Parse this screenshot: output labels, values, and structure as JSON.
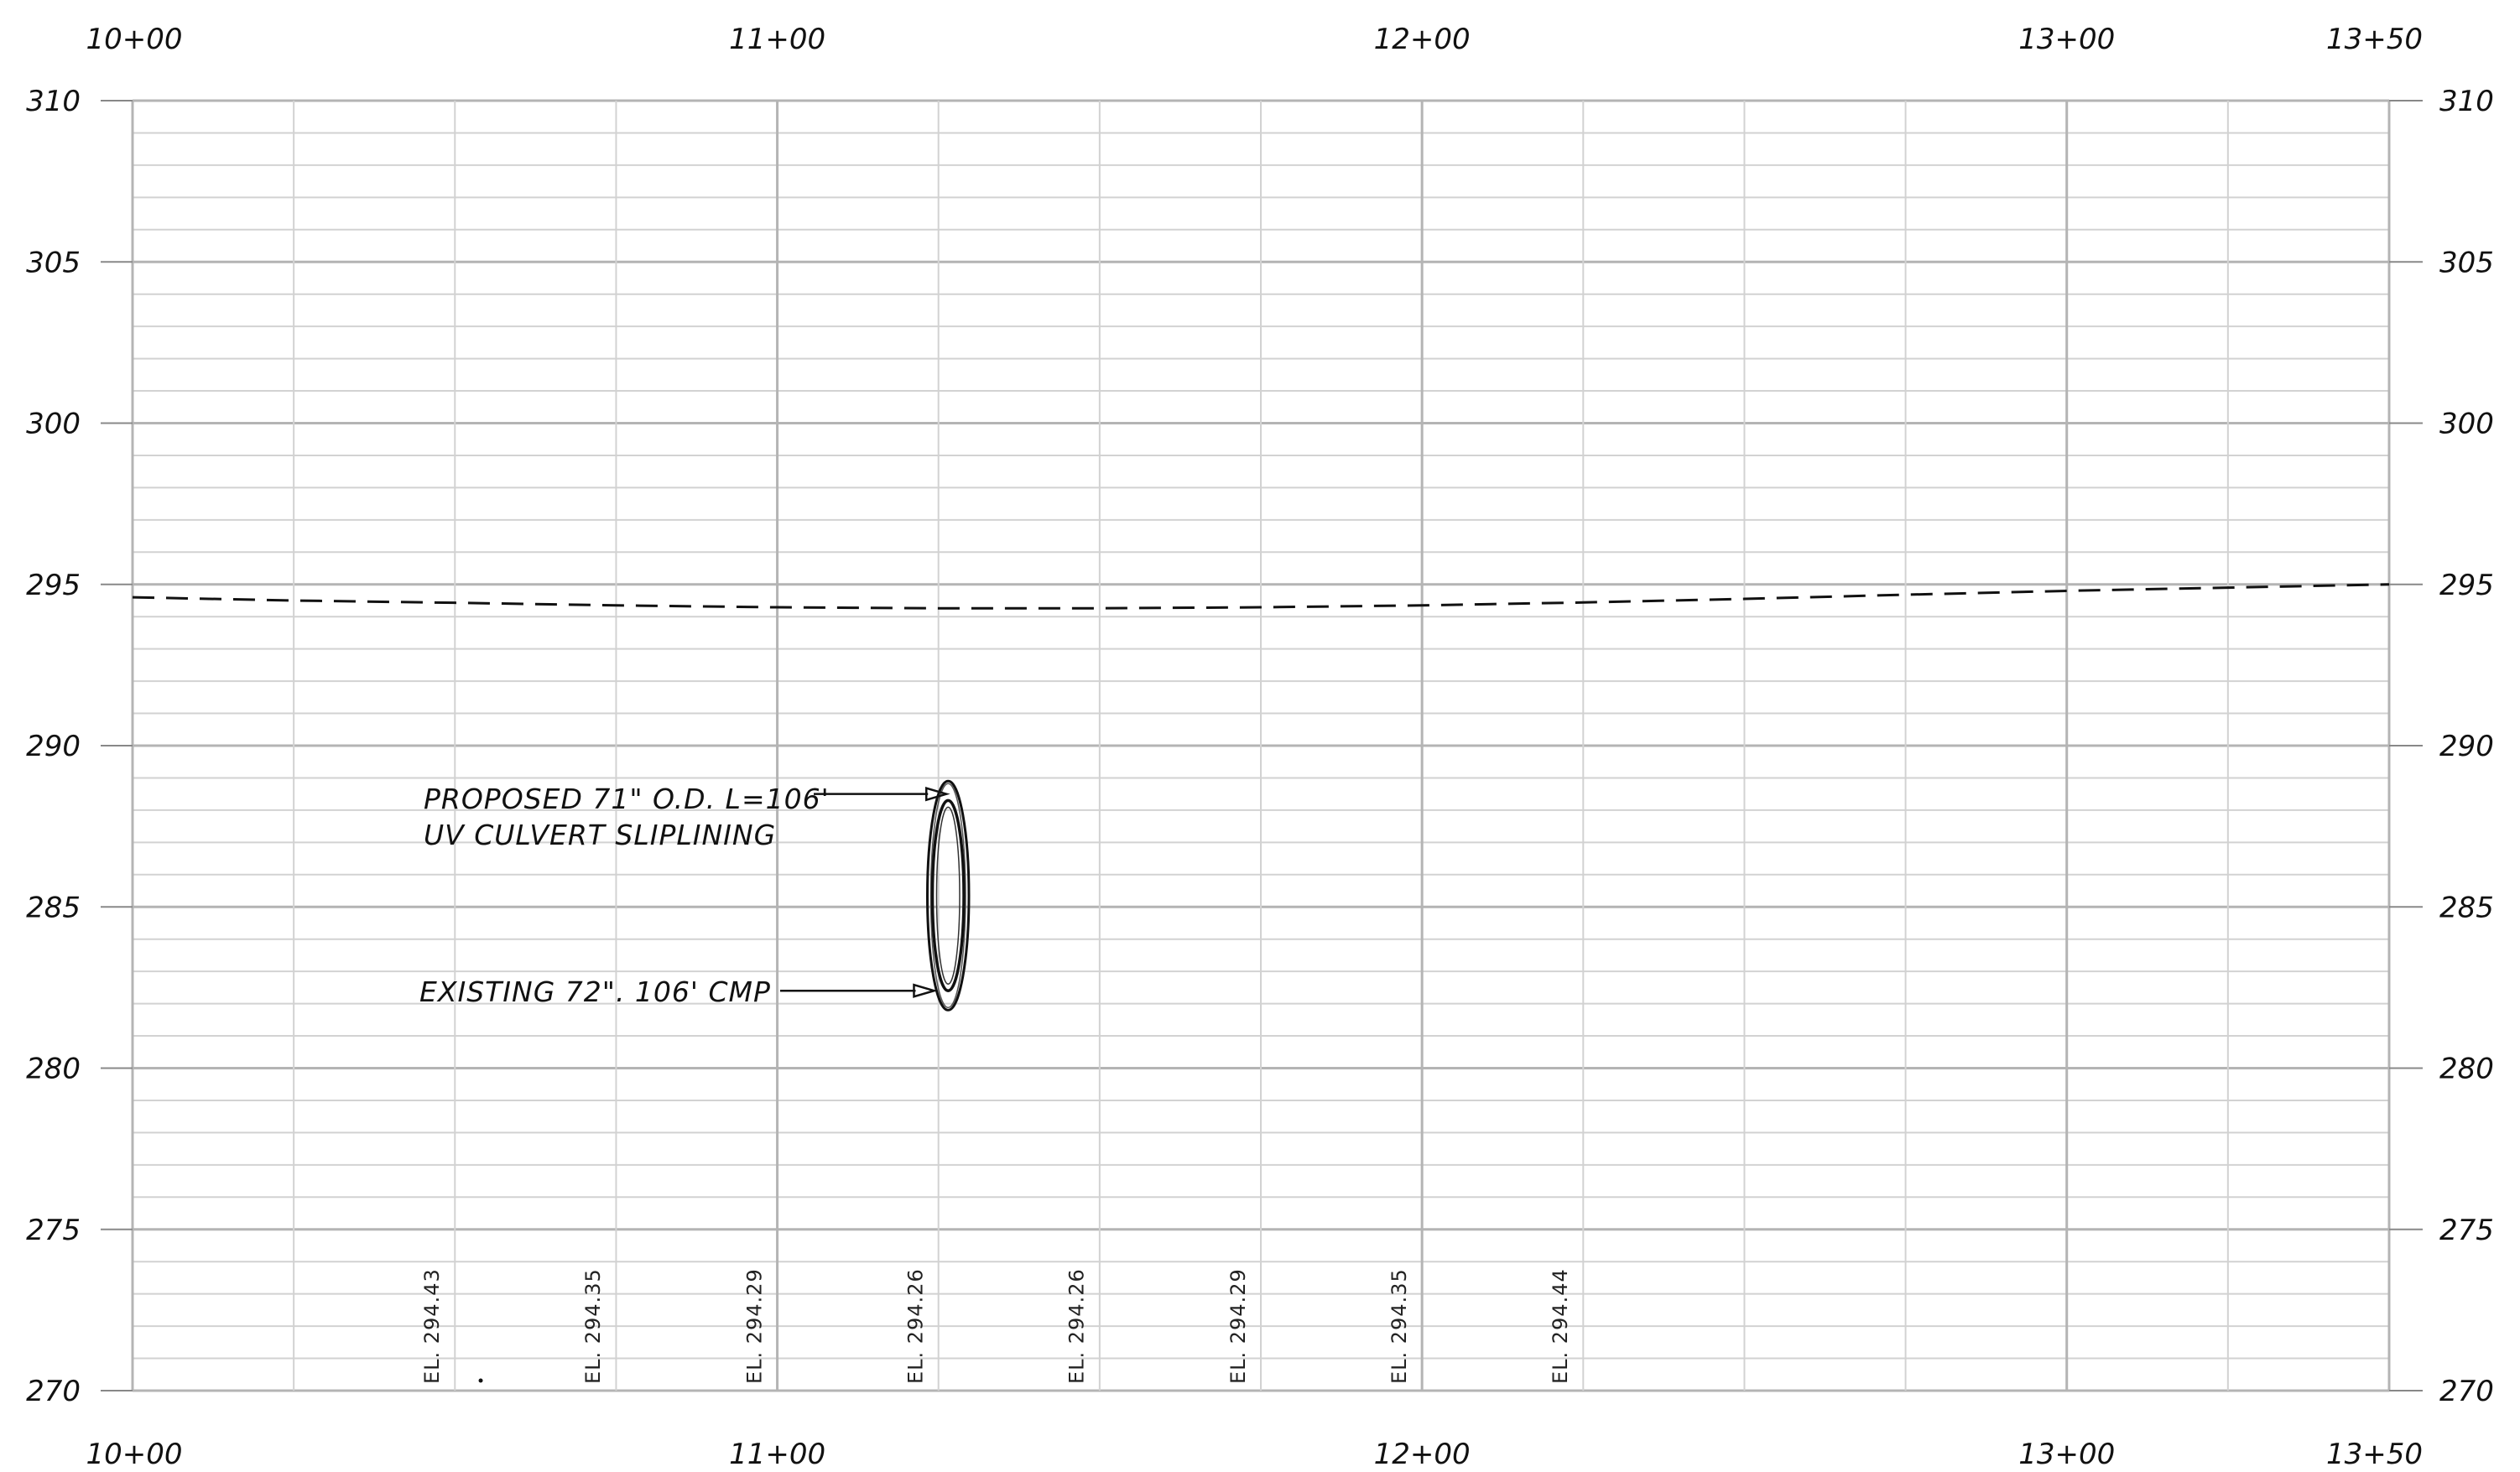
{
  "profile": {
    "stations_top": [
      "10+00",
      "11+00",
      "12+00",
      "13+00",
      "13+50"
    ],
    "stations_bottom": [
      "10+00",
      "11+00",
      "12+00",
      "13+00",
      "13+50"
    ],
    "station_values": [
      1000,
      1100,
      1200,
      1300,
      1350
    ],
    "elevations_left": [
      "310",
      "305",
      "300",
      "295",
      "290",
      "285",
      "280",
      "275",
      "270"
    ],
    "elevations_right": [
      "310",
      "305",
      "300",
      "295",
      "290",
      "285",
      "280",
      "275",
      "270"
    ],
    "elevation_values": [
      310,
      305,
      300,
      295,
      290,
      285,
      280,
      275,
      270
    ],
    "x_range": [
      1000,
      1350
    ],
    "y_range": [
      270,
      310
    ],
    "grid": true,
    "colors": {
      "grid_major": "#b4b4b4",
      "grid_minor": "#d2d2d2",
      "ink": "#111111"
    },
    "ground_line": {
      "style": "dashed",
      "points": [
        [
          1000,
          294.6
        ],
        [
          1025,
          294.5
        ],
        [
          1050,
          294.43
        ],
        [
          1075,
          294.35
        ],
        [
          1100,
          294.29
        ],
        [
          1125,
          294.26
        ],
        [
          1150,
          294.26
        ],
        [
          1175,
          294.29
        ],
        [
          1200,
          294.35
        ],
        [
          1225,
          294.44
        ],
        [
          1250,
          294.55
        ],
        [
          1275,
          294.68
        ],
        [
          1300,
          294.8
        ],
        [
          1325,
          294.9
        ],
        [
          1350,
          295.0
        ]
      ]
    },
    "culvert": {
      "station": 1126.5,
      "top_elevation": 288.9,
      "bottom_elevation": 281.8,
      "liner_top_elevation": 288.3,
      "liner_bottom_elevation": 282.4,
      "half_width_station": 2.7
    },
    "callouts": {
      "proposed_line1": "PROPOSED 71\" O.D. L=106'",
      "proposed_line2": "UV CULVERT SLIPLINING",
      "existing": "EXISTING 72\". 106' CMP"
    },
    "elevation_labels": [
      {
        "text": "EL. 294.43",
        "station": 1047.5
      },
      {
        "text": "EL. 294.35",
        "station": 1072.5
      },
      {
        "text": "EL. 294.29",
        "station": 1097.5
      },
      {
        "text": "EL. 294.26",
        "station": 1122.5
      },
      {
        "text": "EL. 294.26",
        "station": 1147.5
      },
      {
        "text": "EL. 294.29",
        "station": 1172.5
      },
      {
        "text": "EL. 294.35",
        "station": 1197.5
      },
      {
        "text": "EL. 294.44",
        "station": 1222.5
      }
    ]
  }
}
